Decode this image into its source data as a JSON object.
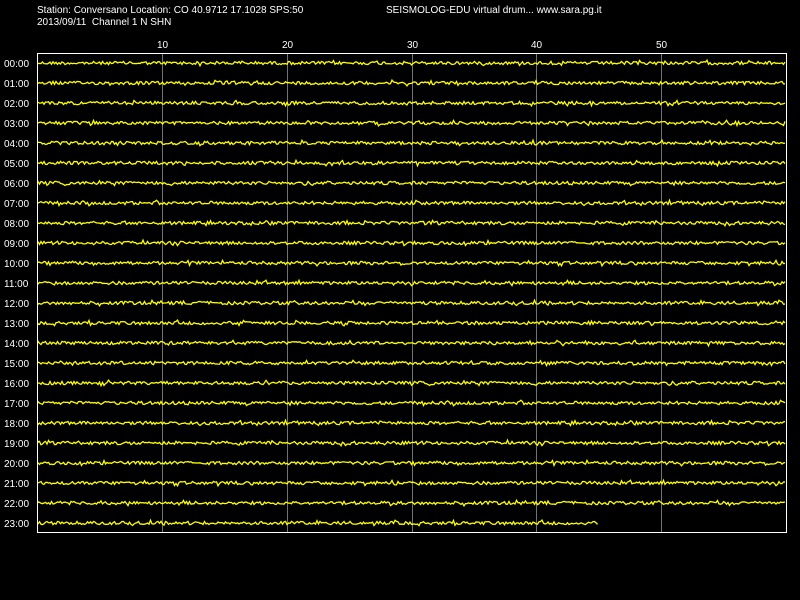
{
  "header": {
    "station_line": "Station: Conversano Location: CO 40.9712 17.1028 SPS:50",
    "date_channel_line": "2013/09/11  Channel 1 N SHN",
    "right_text": "SEISMOLOG-EDU virtual drum... www.sara.pg.it"
  },
  "colors": {
    "background": "#000000",
    "trace": "#ffff00",
    "frame": "#ffffff",
    "grid": "#ffffff"
  },
  "chart_data": {
    "type": "line",
    "title": "",
    "xlabel": "",
    "ylabel": "",
    "x_range": [
      0,
      60
    ],
    "x_ticks": [
      10,
      20,
      30,
      40,
      50
    ],
    "grid": true,
    "rows": [
      {
        "label": "00:00",
        "end_minute": 60
      },
      {
        "label": "01:00",
        "end_minute": 60
      },
      {
        "label": "02:00",
        "end_minute": 60
      },
      {
        "label": "03:00",
        "end_minute": 60
      },
      {
        "label": "04:00",
        "end_minute": 60
      },
      {
        "label": "05:00",
        "end_minute": 60
      },
      {
        "label": "06:00",
        "end_minute": 60
      },
      {
        "label": "07:00",
        "end_minute": 60
      },
      {
        "label": "08:00",
        "end_minute": 60
      },
      {
        "label": "09:00",
        "end_minute": 60
      },
      {
        "label": "10:00",
        "end_minute": 60
      },
      {
        "label": "11:00",
        "end_minute": 60
      },
      {
        "label": "12:00",
        "end_minute": 60
      },
      {
        "label": "13:00",
        "end_minute": 60
      },
      {
        "label": "14:00",
        "end_minute": 60
      },
      {
        "label": "15:00",
        "end_minute": 60
      },
      {
        "label": "16:00",
        "end_minute": 60
      },
      {
        "label": "17:00",
        "end_minute": 60
      },
      {
        "label": "18:00",
        "end_minute": 60
      },
      {
        "label": "19:00",
        "end_minute": 60
      },
      {
        "label": "20:00",
        "end_minute": 60
      },
      {
        "label": "21:00",
        "end_minute": 60
      },
      {
        "label": "22:00",
        "end_minute": 60
      },
      {
        "label": "23:00",
        "end_minute": 45
      }
    ]
  }
}
